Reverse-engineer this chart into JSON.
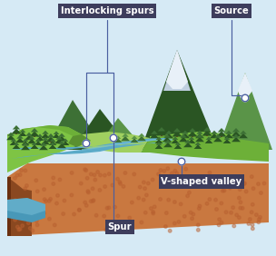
{
  "bg_color": "#d6eaf5",
  "label_bg_color": "#3d3d5c",
  "label_text_color": "#ffffff",
  "label_font_size": 7.2,
  "annotation_line_color": "#4a5fa0",
  "dot_color": "#ffffff",
  "dot_edge_color": "#4a5fa0",
  "labels": {
    "interlocking_spurs": "Interlocking spurs",
    "source": "Source",
    "v_shaped_valley": "V-shaped valley",
    "spur": "Spur"
  },
  "colors": {
    "sky": "#d6eaf5",
    "mountain_dark_green": "#2a5523",
    "mountain_mid_green": "#3d7035",
    "mountain_light_green": "#5a9448",
    "grass_bright": "#7ec444",
    "grass_mid": "#6db038",
    "grass_dark": "#5a9030",
    "grass_slope": "#8ccc50",
    "grass_valley": "#a0d060",
    "ground_face": "#c97840",
    "ground_top": "#d4884a",
    "ground_side": "#8a4820",
    "ground_dark": "#6a3010",
    "ground_dot": "#b86030",
    "river_main": "#5aaac8",
    "river_light": "#7ac0d8",
    "river_dark": "#4090b0",
    "snow": "#e8f0f8",
    "snow_shadow": "#c0d0e0",
    "water_pool": "#4898b8",
    "cliff_left": "#5a3015"
  }
}
